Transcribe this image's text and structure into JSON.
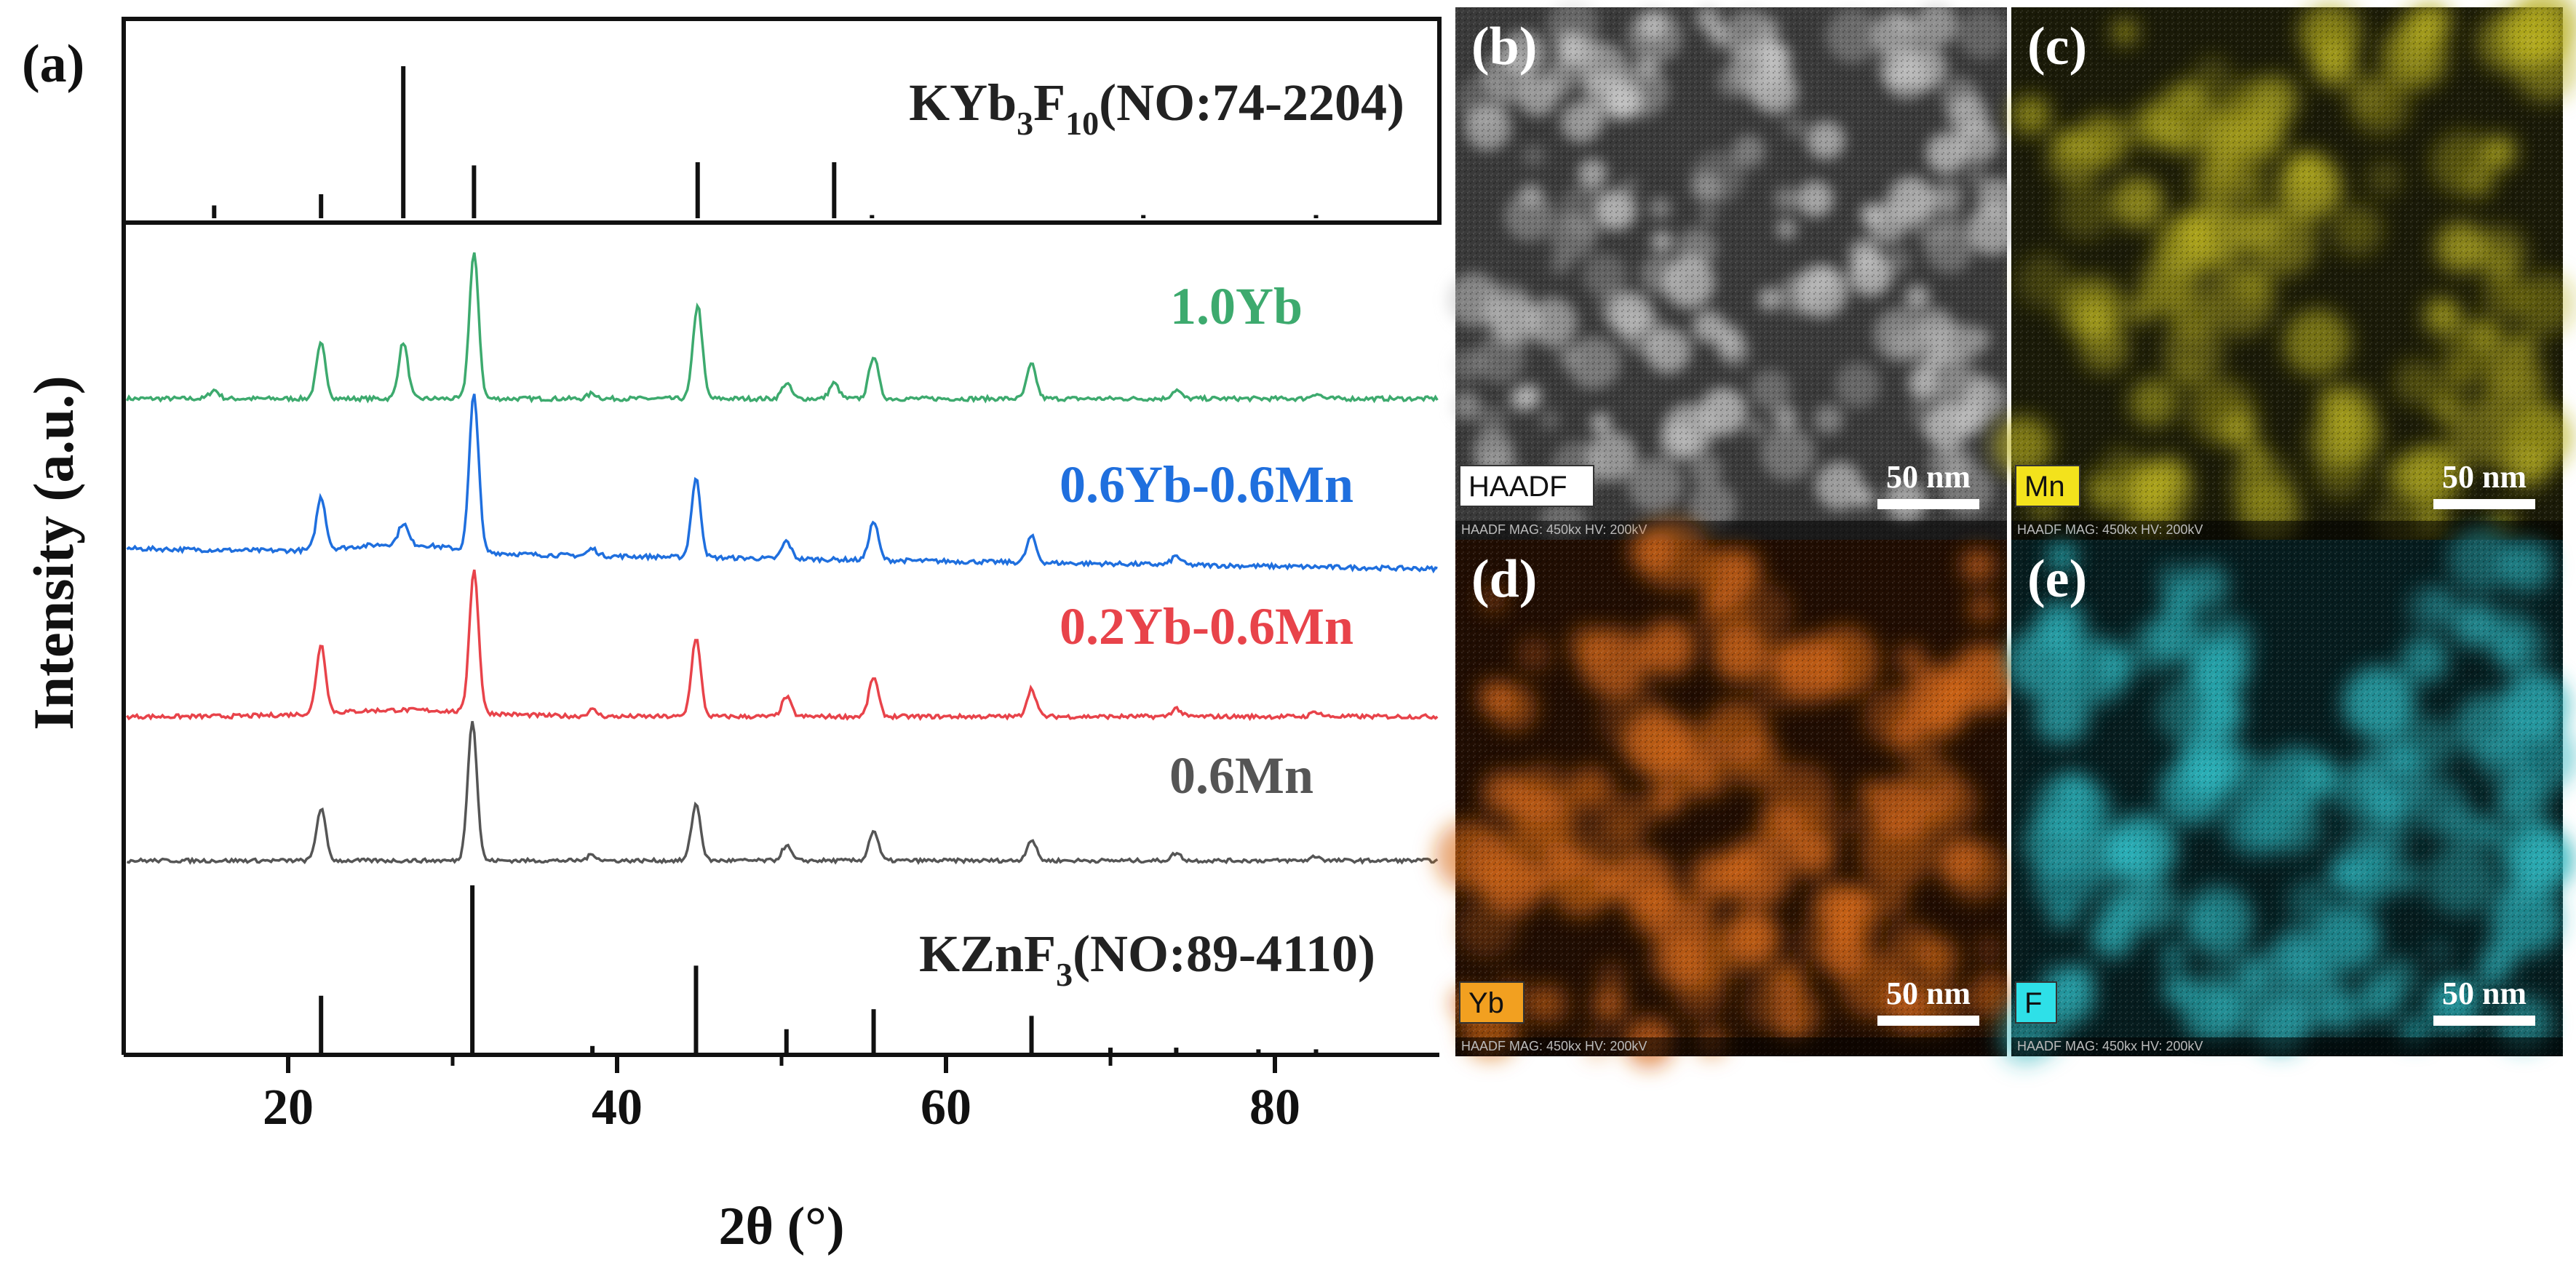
{
  "panel_letters": [
    "(a)",
    "(b)",
    "(c)",
    "(d)",
    "(e)"
  ],
  "chart_data": {
    "type": "line",
    "xlabel": "2θ (°)",
    "ylabel": "Intensity (a.u.)",
    "xlim": [
      10,
      90
    ],
    "xticks": [
      20,
      40,
      60,
      80
    ],
    "ylim": [
      0,
      1
    ],
    "grid": false,
    "reference_top": {
      "label_main": "KYb",
      "label_sub1": "3",
      "label_mid": "F",
      "label_sub2": "10",
      "label_tail": "(NO:74-2204)",
      "peaks": [
        [
          15.5,
          0.08
        ],
        [
          22.0,
          0.15
        ],
        [
          27.0,
          0.95
        ],
        [
          31.3,
          0.33
        ],
        [
          44.9,
          0.35
        ],
        [
          53.2,
          0.35
        ],
        [
          55.5,
          0.02
        ],
        [
          72.0,
          0.02
        ],
        [
          82.5,
          0.02
        ]
      ]
    },
    "reference_bottom": {
      "label_main": "KZnF",
      "label_sub1": "3",
      "label_tail": "(NO:89-4110)",
      "peaks": [
        [
          22.0,
          0.34
        ],
        [
          31.2,
          1.0
        ],
        [
          38.5,
          0.04
        ],
        [
          44.8,
          0.52
        ],
        [
          50.3,
          0.14
        ],
        [
          55.6,
          0.26
        ],
        [
          65.2,
          0.22
        ],
        [
          70.0,
          0.03
        ],
        [
          74.0,
          0.03
        ],
        [
          79.0,
          0.02
        ],
        [
          82.5,
          0.02
        ]
      ]
    },
    "series": [
      {
        "name": "1.0Yb",
        "color": "#3daa6e",
        "baseline": 0.0,
        "peaks": [
          [
            15.5,
            0.05
          ],
          [
            22.0,
            0.32
          ],
          [
            27.0,
            0.33
          ],
          [
            31.3,
            0.85
          ],
          [
            38.5,
            0.03
          ],
          [
            44.9,
            0.55
          ],
          [
            50.3,
            0.09
          ],
          [
            53.2,
            0.09
          ],
          [
            55.6,
            0.25
          ],
          [
            65.2,
            0.2
          ],
          [
            74.0,
            0.05
          ],
          [
            82.5,
            0.03
          ]
        ]
      },
      {
        "name": "0.6Yb-0.6Mn",
        "color": "#1f6fde",
        "baseline": 0.0,
        "peaks": [
          [
            22.0,
            0.3
          ],
          [
            27.0,
            0.12
          ],
          [
            31.3,
            0.9
          ],
          [
            38.5,
            0.04
          ],
          [
            44.8,
            0.45
          ],
          [
            50.3,
            0.1
          ],
          [
            55.6,
            0.22
          ],
          [
            65.2,
            0.15
          ],
          [
            74.0,
            0.05
          ]
        ]
      },
      {
        "name": "0.2Yb-0.6Mn",
        "color": "#e8434a",
        "baseline": 0.0,
        "peaks": [
          [
            22.0,
            0.42
          ],
          [
            31.3,
            0.87
          ],
          [
            38.5,
            0.04
          ],
          [
            44.8,
            0.48
          ],
          [
            50.3,
            0.12
          ],
          [
            55.6,
            0.24
          ],
          [
            65.2,
            0.17
          ],
          [
            74.0,
            0.05
          ],
          [
            82.5,
            0.03
          ]
        ]
      },
      {
        "name": "0.6Mn",
        "color": "#555555",
        "baseline": 0.0,
        "peaks": [
          [
            22.0,
            0.35
          ],
          [
            31.2,
            0.94
          ],
          [
            38.5,
            0.04
          ],
          [
            44.8,
            0.38
          ],
          [
            50.3,
            0.1
          ],
          [
            55.6,
            0.2
          ],
          [
            65.2,
            0.14
          ],
          [
            74.0,
            0.05
          ],
          [
            82.5,
            0.03
          ]
        ]
      }
    ]
  },
  "micrographs": [
    {
      "id": "b",
      "letter": "(b)",
      "badge": "HAADF",
      "scale": "50 nm",
      "footer": "HAADF  MAG: 450kx  HV: 200kV",
      "base": "#3a3a3a",
      "spot": "#c8c8c8",
      "badge_bg": "#ffffff",
      "badge_fg": "#111111"
    },
    {
      "id": "c",
      "letter": "(c)",
      "badge": "Mn",
      "scale": "50 nm",
      "footer": "HAADF  MAG: 450kx  HV: 200kV",
      "base": "#1a1a08",
      "spot": "#b8b020",
      "badge_bg": "#f3e21c",
      "badge_fg": "#111111"
    },
    {
      "id": "d",
      "letter": "(d)",
      "badge": "Yb",
      "scale": "50 nm",
      "footer": "HAADF  MAG: 450kx  HV: 200kV",
      "base": "#200d02",
      "spot": "#d86a18",
      "badge_bg": "#f2a020",
      "badge_fg": "#111111"
    },
    {
      "id": "e",
      "letter": "(e)",
      "badge": "F",
      "scale": "50 nm",
      "footer": "HAADF  MAG: 450kx  HV: 200kV",
      "base": "#061c1e",
      "spot": "#2cb4bc",
      "badge_bg": "#2ee0e8",
      "badge_fg": "#111111"
    }
  ]
}
